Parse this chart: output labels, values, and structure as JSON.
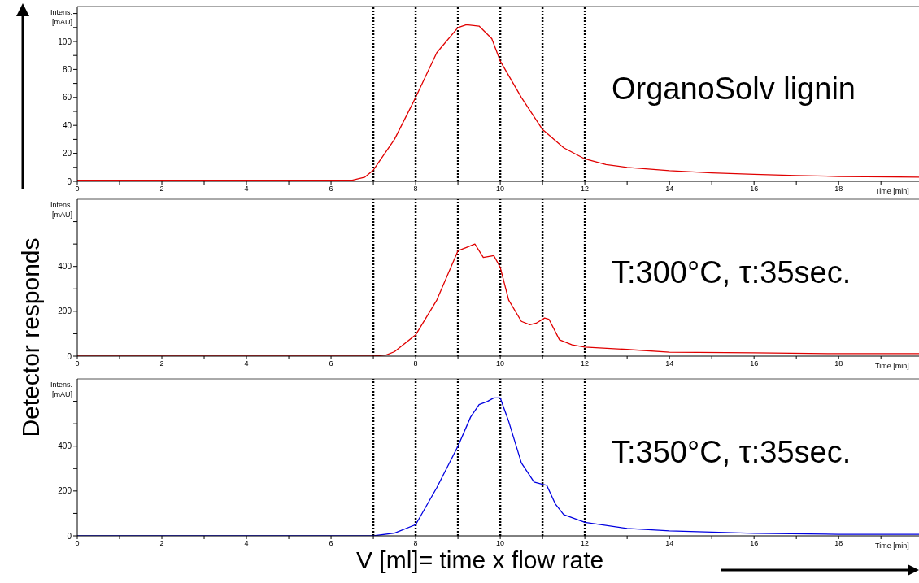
{
  "chart_data": [
    {
      "type": "line",
      "title": "OrganoSolv lignin",
      "xlabel": "Time [min]",
      "ylabel": "Intens. [mAU]",
      "annotations": [
        "Detector responds",
        "V [ml]= time x flow rate"
      ],
      "x": [
        0,
        6.5,
        6.8,
        7,
        7.5,
        8,
        8.5,
        9,
        9.2,
        9.5,
        9.8,
        10,
        10.5,
        11,
        11.5,
        12,
        12.5,
        13,
        14,
        15,
        16,
        17,
        18,
        19.9
      ],
      "series": [
        {
          "color": "#e00000",
          "values": [
            0.8,
            0.8,
            3,
            8,
            30,
            60,
            92,
            110,
            112,
            111,
            102,
            86,
            60,
            37,
            24,
            16,
            12,
            10,
            7.6,
            6,
            5,
            4.2,
            3.5,
            3
          ]
        }
      ],
      "xlim": [
        0,
        19.9
      ],
      "xticks": [
        0,
        {
          "value": 1,
          "label": null
        },
        2,
        {
          "value": 3,
          "label": null
        },
        4,
        {
          "value": 5,
          "label": null
        },
        6,
        {
          "value": 7,
          "label": null
        },
        8,
        {
          "value": 9,
          "label": null
        },
        10,
        {
          "value": 11,
          "label": null
        },
        12,
        {
          "value": 13,
          "label": null
        },
        14,
        {
          "value": 15,
          "label": null
        },
        16,
        {
          "value": 17,
          "label": null
        },
        18,
        {
          "value": 19,
          "label": null
        }
      ],
      "ylim": [
        0,
        125
      ],
      "yticks": [
        0,
        {
          "value": 10,
          "label": null
        },
        20,
        {
          "value": 30,
          "label": null
        },
        40,
        {
          "value": 50,
          "label": null
        },
        60,
        {
          "value": 70,
          "label": null
        },
        80,
        {
          "value": 90,
          "label": null
        },
        100,
        {
          "value": 110,
          "label": null
        },
        {
          "value": 120,
          "label": null
        }
      ],
      "ref_lines": [
        {
          "axis": "x",
          "value": 7,
          "color": "#000000",
          "line_style": "dotted"
        },
        {
          "axis": "x",
          "value": 8,
          "color": "#000000",
          "line_style": "dotted"
        },
        {
          "axis": "x",
          "value": 9,
          "color": "#000000",
          "line_style": "dotted"
        },
        {
          "axis": "x",
          "value": 10,
          "color": "#000000",
          "line_style": "dotted"
        },
        {
          "axis": "x",
          "value": 11,
          "color": "#000000",
          "line_style": "dotted"
        },
        {
          "axis": "x",
          "value": 12,
          "color": "#000000",
          "line_style": "dotted"
        }
      ]
    },
    {
      "type": "line",
      "title": "T:300°C, τ:35sec.",
      "xlabel": "Time [min]",
      "ylabel": "Intens. [mAU]",
      "x": [
        0,
        7,
        7.3,
        7.5,
        8,
        8.5,
        9,
        9.2,
        9.4,
        9.6,
        9.85,
        10,
        10.2,
        10.5,
        10.7,
        10.85,
        11.05,
        11.15,
        11.4,
        11.7,
        12,
        13,
        14,
        16,
        18,
        19.9
      ],
      "series": [
        {
          "color": "#e00000",
          "values": [
            0,
            0,
            5,
            20,
            95,
            250,
            470,
            485,
            500,
            440,
            448,
            396,
            250,
            155,
            140,
            147,
            170,
            165,
            73,
            50,
            40,
            30,
            18,
            15,
            11,
            11
          ]
        }
      ],
      "xlim": [
        0,
        19.9
      ],
      "xticks": [
        0,
        {
          "value": 1,
          "label": null
        },
        2,
        {
          "value": 3,
          "label": null
        },
        4,
        {
          "value": 5,
          "label": null
        },
        6,
        {
          "value": 7,
          "label": null
        },
        8,
        {
          "value": 9,
          "label": null
        },
        10,
        {
          "value": 11,
          "label": null
        },
        12,
        {
          "value": 13,
          "label": null
        },
        14,
        {
          "value": 15,
          "label": null
        },
        16,
        {
          "value": 17,
          "label": null
        },
        18,
        {
          "value": 19,
          "label": null
        }
      ],
      "ylim": [
        0,
        700
      ],
      "yticks": [
        0,
        {
          "value": 100,
          "label": null
        },
        200,
        {
          "value": 300,
          "label": null
        },
        400,
        {
          "value": 500,
          "label": null
        },
        {
          "value": 600,
          "label": null
        }
      ],
      "ref_lines": [
        {
          "axis": "x",
          "value": 7,
          "color": "#000000",
          "line_style": "dotted"
        },
        {
          "axis": "x",
          "value": 8,
          "color": "#000000",
          "line_style": "dotted"
        },
        {
          "axis": "x",
          "value": 9,
          "color": "#000000",
          "line_style": "dotted"
        },
        {
          "axis": "x",
          "value": 10,
          "color": "#000000",
          "line_style": "dotted"
        },
        {
          "axis": "x",
          "value": 11,
          "color": "#000000",
          "line_style": "dotted"
        },
        {
          "axis": "x",
          "value": 12,
          "color": "#000000",
          "line_style": "dotted"
        }
      ]
    },
    {
      "type": "line",
      "title": "T:350°C, τ:35sec.",
      "xlabel": "Time [min]",
      "ylabel": "Intens. [mAU]",
      "x": [
        0,
        7,
        7.5,
        8,
        8.5,
        9,
        9.3,
        9.5,
        9.7,
        9.85,
        10,
        10.2,
        10.5,
        10.8,
        11,
        11.1,
        11.3,
        11.5,
        12,
        13,
        14,
        16,
        18,
        19.9
      ],
      "series": [
        {
          "color": "#0000e0",
          "values": [
            0,
            0,
            12,
            50,
            215,
            400,
            530,
            585,
            600,
            615,
            615,
            510,
            325,
            240,
            230,
            225,
            143,
            95,
            60,
            33,
            22,
            11,
            7,
            7
          ]
        }
      ],
      "xlim": [
        0,
        19.9
      ],
      "xticks": [
        0,
        {
          "value": 1,
          "label": null
        },
        2,
        {
          "value": 3,
          "label": null
        },
        4,
        {
          "value": 5,
          "label": null
        },
        6,
        {
          "value": 7,
          "label": null
        },
        8,
        {
          "value": 9,
          "label": null
        },
        10,
        {
          "value": 11,
          "label": null
        },
        12,
        {
          "value": 13,
          "label": null
        },
        14,
        {
          "value": 15,
          "label": null
        },
        16,
        {
          "value": 17,
          "label": null
        },
        18,
        {
          "value": 19,
          "label": null
        }
      ],
      "ylim": [
        0,
        700
      ],
      "yticks": [
        0,
        {
          "value": 100,
          "label": null
        },
        200,
        {
          "value": 300,
          "label": null
        },
        400,
        {
          "value": 500,
          "label": null
        },
        {
          "value": 600,
          "label": null
        }
      ],
      "ref_lines": [
        {
          "axis": "x",
          "value": 7,
          "color": "#000000",
          "line_style": "dotted"
        },
        {
          "axis": "x",
          "value": 8,
          "color": "#000000",
          "line_style": "dotted"
        },
        {
          "axis": "x",
          "value": 9,
          "color": "#000000",
          "line_style": "dotted"
        },
        {
          "axis": "x",
          "value": 10,
          "color": "#000000",
          "line_style": "dotted"
        },
        {
          "axis": "x",
          "value": 11,
          "color": "#000000",
          "line_style": "dotted"
        },
        {
          "axis": "x",
          "value": 12,
          "color": "#000000",
          "line_style": "dotted"
        }
      ]
    }
  ]
}
